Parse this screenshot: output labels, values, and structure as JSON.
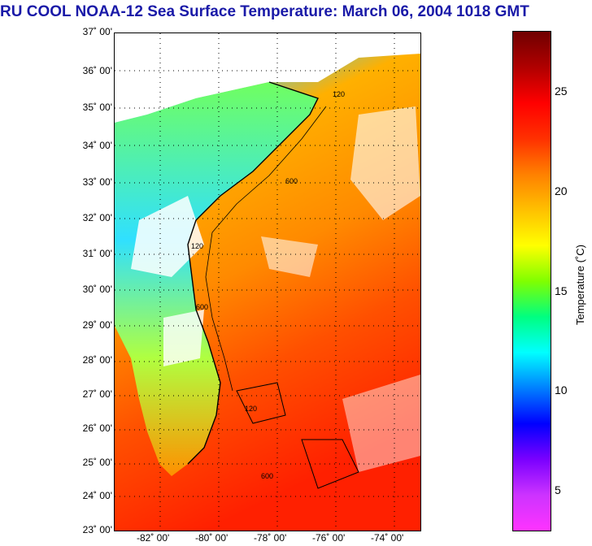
{
  "title": "RU COOL  NOAA-12  Sea Surface Temperature:  March 06, 2004 1018 GMT",
  "map": {
    "lat_labels": [
      "37˚ 00'",
      "36˚ 00'",
      "35˚ 00'",
      "34˚ 00'",
      "33˚ 00'",
      "32˚ 00'",
      "31˚ 00'",
      "30˚ 00'",
      "29˚ 00'",
      "28˚ 00'",
      "27˚ 00'",
      "26˚ 00'",
      "25˚ 00'",
      "24˚ 00'",
      "23˚ 00'"
    ],
    "lon_labels": [
      "-82˚ 00'",
      "-80˚ 00'",
      "-78˚ 00'",
      "-76˚ 00'",
      "-74˚ 00'"
    ],
    "isobath_labels": [
      "120",
      "600",
      "120",
      "600",
      "120",
      "600"
    ],
    "lat_range": [
      23,
      37
    ],
    "lon_range": [
      -83.5,
      -73.5
    ]
  },
  "colorbar": {
    "label": "Temperature (˚C)",
    "ticks": [
      "25",
      "20",
      "15",
      "10",
      "5"
    ],
    "range": [
      3,
      28
    ],
    "colors": [
      "#ff33ff",
      "#cc33ff",
      "#7a00ff",
      "#0000ff",
      "#0080ff",
      "#00ffff",
      "#00ff80",
      "#80ff00",
      "#ffff00",
      "#ffc000",
      "#ff8000",
      "#ff3000",
      "#ff0000",
      "#b00000",
      "#700000"
    ]
  }
}
